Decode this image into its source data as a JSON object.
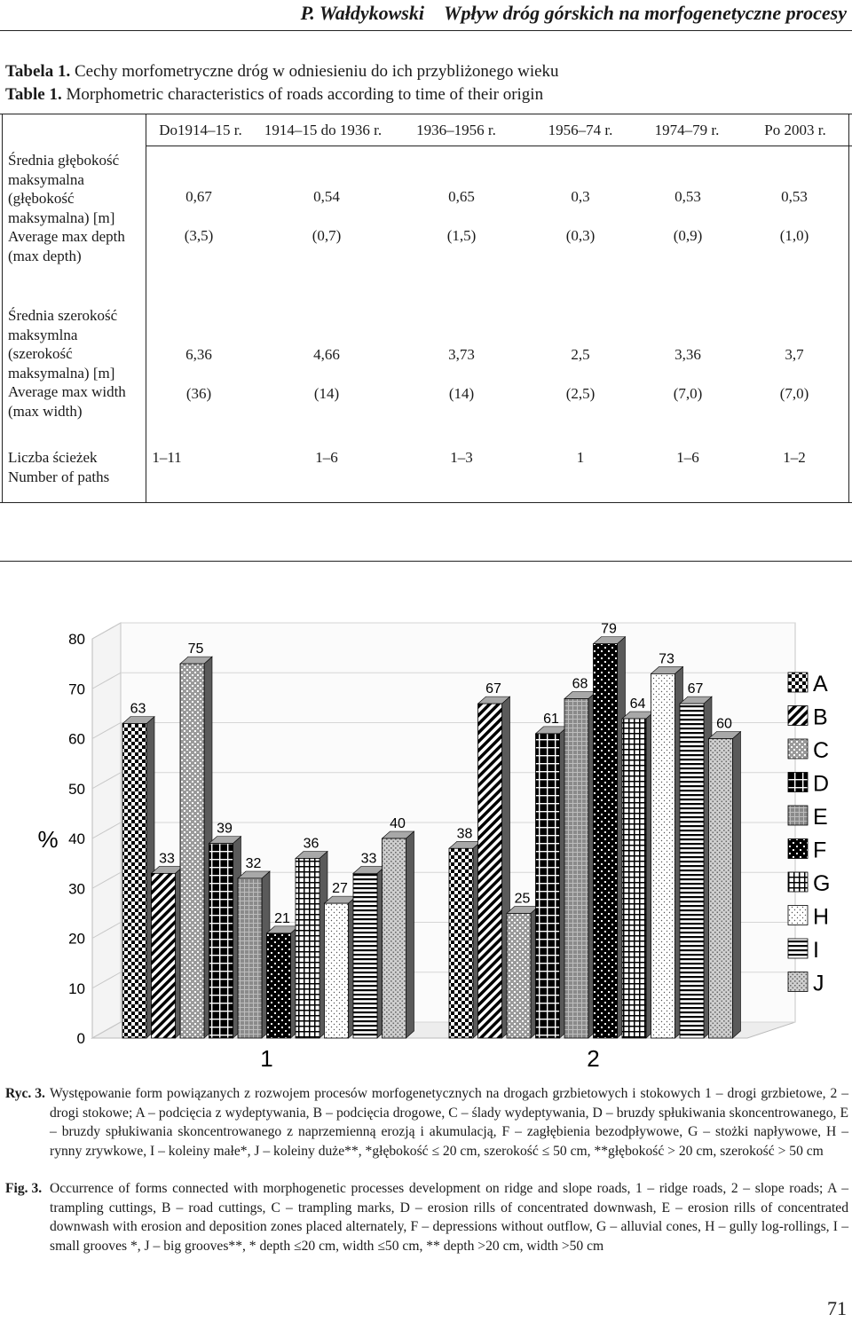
{
  "header": {
    "author": "P. Wałdykowski",
    "title": "Wpływ dróg górskich na morfogenetyczne procesy"
  },
  "table": {
    "caption_pl": {
      "label": "Tabela 1.",
      "text": "Cechy morfometryczne dróg w odniesieniu do ich przybliżonego wieku"
    },
    "caption_en": {
      "label": "Table 1.",
      "text": "Morphometric characteristics of roads according to time of their origin"
    },
    "columns": [
      "Do1914–15 r.",
      "1914–15 do 1936 r.",
      "1936–1956 r.",
      "1956–74 r.",
      "1974–79 r.",
      "Po 2003 r."
    ],
    "rows": [
      {
        "label": "Średnia głębokość maksymalna (głębokość maksymalna) [m] Average max depth (max depth)",
        "values": [
          "0,67",
          "0,54",
          "0,65",
          "0,3",
          "0,53",
          "0,53"
        ],
        "sub": [
          "(3,5)",
          "(0,7)",
          "(1,5)",
          "(0,3)",
          "(0,9)",
          "(1,0)"
        ]
      },
      {
        "label": "Średnia szerokość maksymlna (szerokość maksymalna) [m] Average max width (max width)",
        "values": [
          "6,36",
          "4,66",
          "3,73",
          "2,5",
          "3,36",
          "3,7"
        ],
        "sub": [
          "(36)",
          "(14)",
          "(14)",
          "(2,5)",
          "(7,0)",
          "(7,0)"
        ]
      },
      {
        "label": "Liczba ścieżek Number of paths",
        "values": [
          "1–11",
          "1–6",
          "1–3",
          "1",
          "1–6",
          "1–2"
        ]
      }
    ]
  },
  "chart_data": {
    "type": "bar",
    "categories": [
      "1",
      "2"
    ],
    "ylabel": "%",
    "ylim": [
      0,
      80
    ],
    "yticks": [
      0,
      10,
      20,
      30,
      40,
      50,
      60,
      70,
      80
    ],
    "legend_position": "right",
    "series": [
      {
        "name": "A",
        "values": [
          63,
          38
        ]
      },
      {
        "name": "B",
        "values": [
          33,
          67
        ]
      },
      {
        "name": "C",
        "values": [
          75,
          25
        ]
      },
      {
        "name": "D",
        "values": [
          39,
          61
        ]
      },
      {
        "name": "E",
        "values": [
          32,
          68
        ]
      },
      {
        "name": "F",
        "values": [
          21,
          79
        ]
      },
      {
        "name": "G",
        "values": [
          36,
          64
        ]
      },
      {
        "name": "H",
        "values": [
          27,
          73
        ]
      },
      {
        "name": "I",
        "values": [
          33,
          67
        ]
      },
      {
        "name": "J",
        "values": [
          40,
          60
        ]
      }
    ]
  },
  "figure_caption": {
    "pl_label": "Ryc. 3.",
    "pl_text": "Występowanie form powiązanych z rozwojem procesów morfogenetycznych na drogach grzbietowych i stokowych 1 – drogi grzbietowe, 2 – drogi stokowe; A – podcięcia z wydeptywania, B – podcięcia drogowe, C – ślady wydeptywania, D – bruzdy spłukiwania skoncentrowanego, E – bruzdy spłukiwania skoncentrowanego z naprzemienną erozją i akumulacją, F – zagłębienia bezodpływowe, G – stożki napływowe, H – rynny zrywkowe, I – koleiny małe*, J – koleiny duże**, *głębokość ≤ 20 cm, szerokość ≤ 50 cm, **głębokość > 20 cm, szerokość > 50 cm",
    "en_label": "Fig. 3.",
    "en_text": "Occurrence of forms connected with morphogenetic processes development on ridge and slope roads, 1 – ridge roads, 2 – slope roads; A – trampling cuttings, B – road cuttings, C – trampling marks, D – erosion rills of concentrated downwash, E – erosion rills of concentrated downwash with erosion and deposition zones placed alternately, F – depressions without outflow, G – alluvial cones, H – gully log-rollings, I – small grooves *, J – big grooves**, * depth ≤20 cm, width ≤50 cm, ** depth >20 cm, width >50 cm"
  },
  "page_number": "71"
}
